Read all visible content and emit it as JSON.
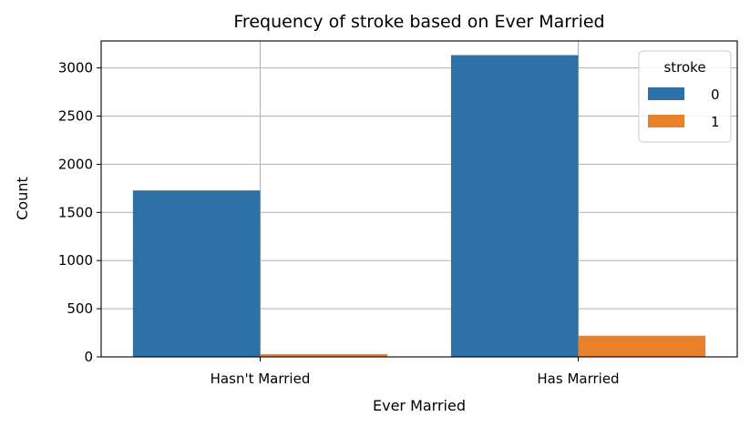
{
  "chart_data": {
    "type": "bar",
    "title": "Frequency of stroke based on Ever Married",
    "xlabel": "Ever Married",
    "ylabel": "Count",
    "categories": [
      "Hasn't Married",
      "Has Married"
    ],
    "series": [
      {
        "name": "0",
        "values": [
          1728,
          3133
        ],
        "color": "#2e71a6"
      },
      {
        "name": "1",
        "values": [
          29,
          220
        ],
        "color": "#e9812a"
      }
    ],
    "ylim": [
      0,
      3280
    ],
    "yticks": [
      0,
      500,
      1000,
      1500,
      2000,
      2500,
      3000
    ],
    "grid": true,
    "legend": {
      "title": "stroke",
      "position": "top-right"
    }
  }
}
